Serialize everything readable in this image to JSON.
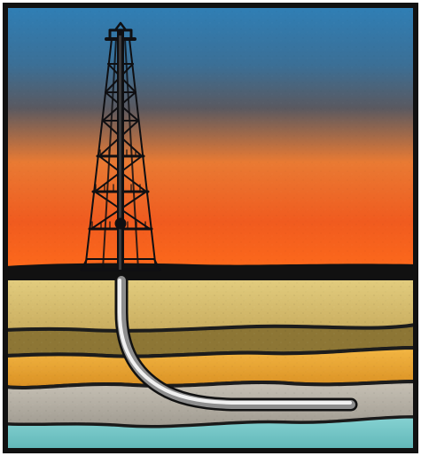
{
  "scene": {
    "subject": "drilling-rig-with-horizontal-well",
    "colors": {
      "border": "#111111",
      "sky_top": "#2f7fb6",
      "sky_mid": "#4a5a66",
      "sky_orange": "#f08a3a",
      "sky_red": "#f4501b",
      "horizon": "#121212",
      "rig": "#0f0f12",
      "layer_tan": "#d7bf73",
      "layer_brown_dark": "#6d5a2c",
      "layer_brown": "#b39a4a",
      "layer_orange": "#e8a936",
      "layer_gray": "#b8b2a6",
      "layer_teal": "#7cc9c9",
      "pipe_light": "#e6e6e6",
      "pipe_dark": "#5d5d5d"
    }
  }
}
